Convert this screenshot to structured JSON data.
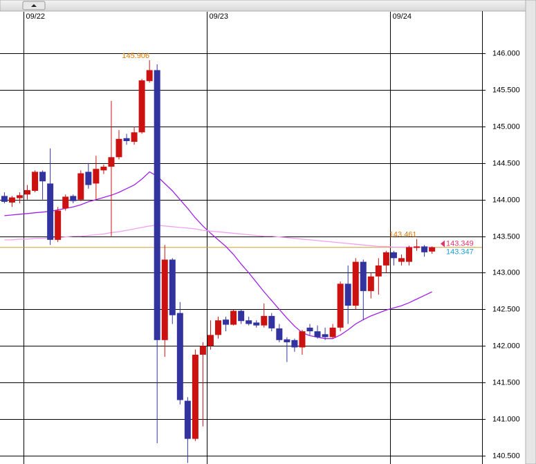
{
  "chart_data": {
    "type": "candlestick",
    "categories": [
      null,
      null,
      null,
      "09/22",
      null,
      null,
      null,
      null,
      null,
      null,
      null,
      null,
      null,
      null,
      null,
      null,
      null,
      null,
      null,
      null,
      null,
      null,
      null,
      null,
      null,
      null,
      null,
      "09/23",
      null,
      null,
      null,
      null,
      null,
      null,
      null,
      null,
      null,
      null,
      null,
      null,
      null,
      null,
      null,
      null,
      null,
      null,
      null,
      null,
      null,
      null,
      null,
      "09/24",
      null,
      null,
      null,
      null,
      null
    ],
    "open": [
      144.05,
      143.96,
      144.02,
      144.07,
      144.12,
      144.38,
      144.22,
      143.45,
      143.88,
      144.05,
      144.0,
      144.38,
      144.22,
      144.4,
      144.45,
      144.58,
      144.84,
      144.79,
      144.92,
      145.62,
      145.77,
      142.08,
      143.18,
      142.45,
      141.25,
      140.73,
      141.88,
      142.0,
      142.15,
      142.36,
      142.29,
      142.48,
      142.35,
      142.32,
      142.28,
      142.41,
      142.24,
      142.09,
      142.08,
      141.98,
      142.25,
      142.2,
      142.16,
      142.12,
      142.25,
      142.85,
      142.55,
      143.15,
      142.75,
      142.95,
      143.1,
      143.28,
      143.15,
      143.15,
      143.34,
      143.36,
      143.29
    ],
    "high": [
      144.1,
      144.05,
      144.1,
      144.2,
      144.4,
      144.4,
      144.7,
      143.9,
      144.07,
      144.07,
      144.4,
      144.5,
      144.6,
      144.48,
      145.35,
      144.95,
      144.9,
      145.0,
      145.65,
      145.906,
      145.85,
      143.38,
      143.2,
      142.6,
      141.3,
      141.95,
      142.05,
      142.35,
      142.4,
      142.4,
      142.5,
      142.5,
      142.4,
      142.35,
      142.58,
      142.45,
      142.3,
      142.12,
      142.1,
      142.22,
      142.3,
      142.28,
      142.25,
      142.3,
      142.88,
      143.1,
      143.2,
      143.18,
      143.0,
      143.2,
      143.3,
      143.3,
      143.25,
      143.37,
      143.461,
      143.38,
      143.36
    ],
    "low": [
      143.95,
      143.9,
      143.95,
      144.0,
      144.1,
      144.0,
      143.38,
      143.42,
      143.85,
      143.95,
      143.98,
      144.15,
      144.0,
      144.35,
      143.5,
      144.55,
      144.75,
      144.75,
      144.9,
      145.6,
      140.67,
      141.85,
      142.3,
      141.2,
      140.4,
      140.7,
      140.9,
      141.95,
      142.1,
      142.2,
      142.28,
      142.3,
      142.28,
      142.25,
      142.25,
      142.2,
      142.05,
      141.78,
      141.92,
      141.88,
      142.15,
      142.1,
      142.08,
      142.1,
      142.2,
      142.3,
      142.5,
      142.35,
      142.65,
      142.7,
      143.0,
      143.1,
      143.1,
      143.1,
      143.3,
      143.22,
      143.26
    ],
    "close": [
      143.97,
      144.03,
      144.06,
      144.13,
      144.38,
      144.25,
      143.45,
      143.85,
      144.04,
      143.98,
      144.36,
      144.2,
      144.42,
      144.45,
      144.58,
      144.83,
      144.8,
      144.92,
      145.63,
      145.77,
      142.08,
      143.18,
      142.42,
      141.26,
      140.73,
      141.88,
      142.0,
      142.15,
      142.35,
      142.29,
      142.48,
      142.34,
      142.3,
      142.28,
      142.41,
      142.24,
      142.08,
      142.05,
      141.98,
      142.2,
      142.2,
      142.12,
      142.12,
      142.25,
      142.85,
      142.55,
      143.15,
      142.75,
      142.95,
      143.1,
      143.28,
      143.2,
      143.2,
      143.35,
      143.36,
      143.28,
      143.349
    ],
    "up_color": "#cc1111",
    "down_color": "#3333a0",
    "series": [
      {
        "color": "#a020e8",
        "values": [
          143.78,
          143.79,
          143.8,
          143.81,
          143.82,
          143.83,
          143.84,
          143.86,
          143.88,
          143.9,
          143.93,
          143.97,
          144.0,
          144.03,
          144.06,
          144.1,
          144.15,
          144.2,
          144.28,
          144.38,
          144.32,
          144.22,
          144.12,
          144.0,
          143.88,
          143.75,
          143.64,
          143.54,
          143.45,
          143.36,
          143.25,
          143.12,
          143.0,
          142.87,
          142.74,
          142.62,
          142.5,
          142.38,
          142.27,
          142.18,
          142.14,
          142.12,
          142.1,
          142.1,
          142.15,
          142.22,
          142.3,
          142.36,
          142.41,
          142.45,
          142.49,
          142.52,
          142.55,
          142.59,
          142.64,
          142.69,
          142.74
        ]
      },
      {
        "color": "#f0a0f0",
        "values": [
          143.45,
          143.45,
          143.46,
          143.46,
          143.47,
          143.47,
          143.48,
          143.48,
          143.49,
          143.5,
          143.5,
          143.51,
          143.52,
          143.53,
          143.55,
          143.56,
          143.58,
          143.6,
          143.62,
          143.64,
          143.65,
          143.64,
          143.63,
          143.62,
          143.61,
          143.6,
          143.58,
          143.57,
          143.56,
          143.55,
          143.54,
          143.53,
          143.52,
          143.51,
          143.5,
          143.5,
          143.49,
          143.48,
          143.47,
          143.46,
          143.45,
          143.44,
          143.43,
          143.42,
          143.41,
          143.4,
          143.39,
          143.38,
          143.37,
          143.36,
          143.36,
          143.35,
          143.35,
          143.35,
          143.35,
          143.35,
          143.35
        ]
      }
    ],
    "ylim": [
      140.386,
      146.568
    ],
    "yticks": [
      {
        "value": 140.5,
        "label": "140.500"
      },
      {
        "value": 141,
        "label": "141.000"
      },
      {
        "value": 141.5,
        "label": "141.500"
      },
      {
        "value": 142,
        "label": "142.000"
      },
      {
        "value": 142.5,
        "label": "142.500"
      },
      {
        "value": 143,
        "label": "143.000"
      },
      {
        "value": 143.5,
        "label": "143.500"
      },
      {
        "value": 144,
        "label": "144.000"
      },
      {
        "value": 144.5,
        "label": "144.500"
      },
      {
        "value": 145,
        "label": "145.000"
      },
      {
        "value": 145.5,
        "label": "145.500"
      },
      {
        "value": 146,
        "label": "146.000"
      }
    ],
    "grid": true,
    "annotations": [
      {
        "value": 145.906,
        "label": "145.906",
        "color": "#e07800"
      },
      {
        "value": 143.461,
        "label": "143.461",
        "color": "#e07800"
      }
    ],
    "price_labels": [
      {
        "value": 143.349,
        "label": "143.349",
        "color": "#e8336a"
      },
      {
        "value": 143.347,
        "label": "143.347",
        "color": "#1e9ed8"
      }
    ],
    "price_line_color": "#d0a030"
  }
}
